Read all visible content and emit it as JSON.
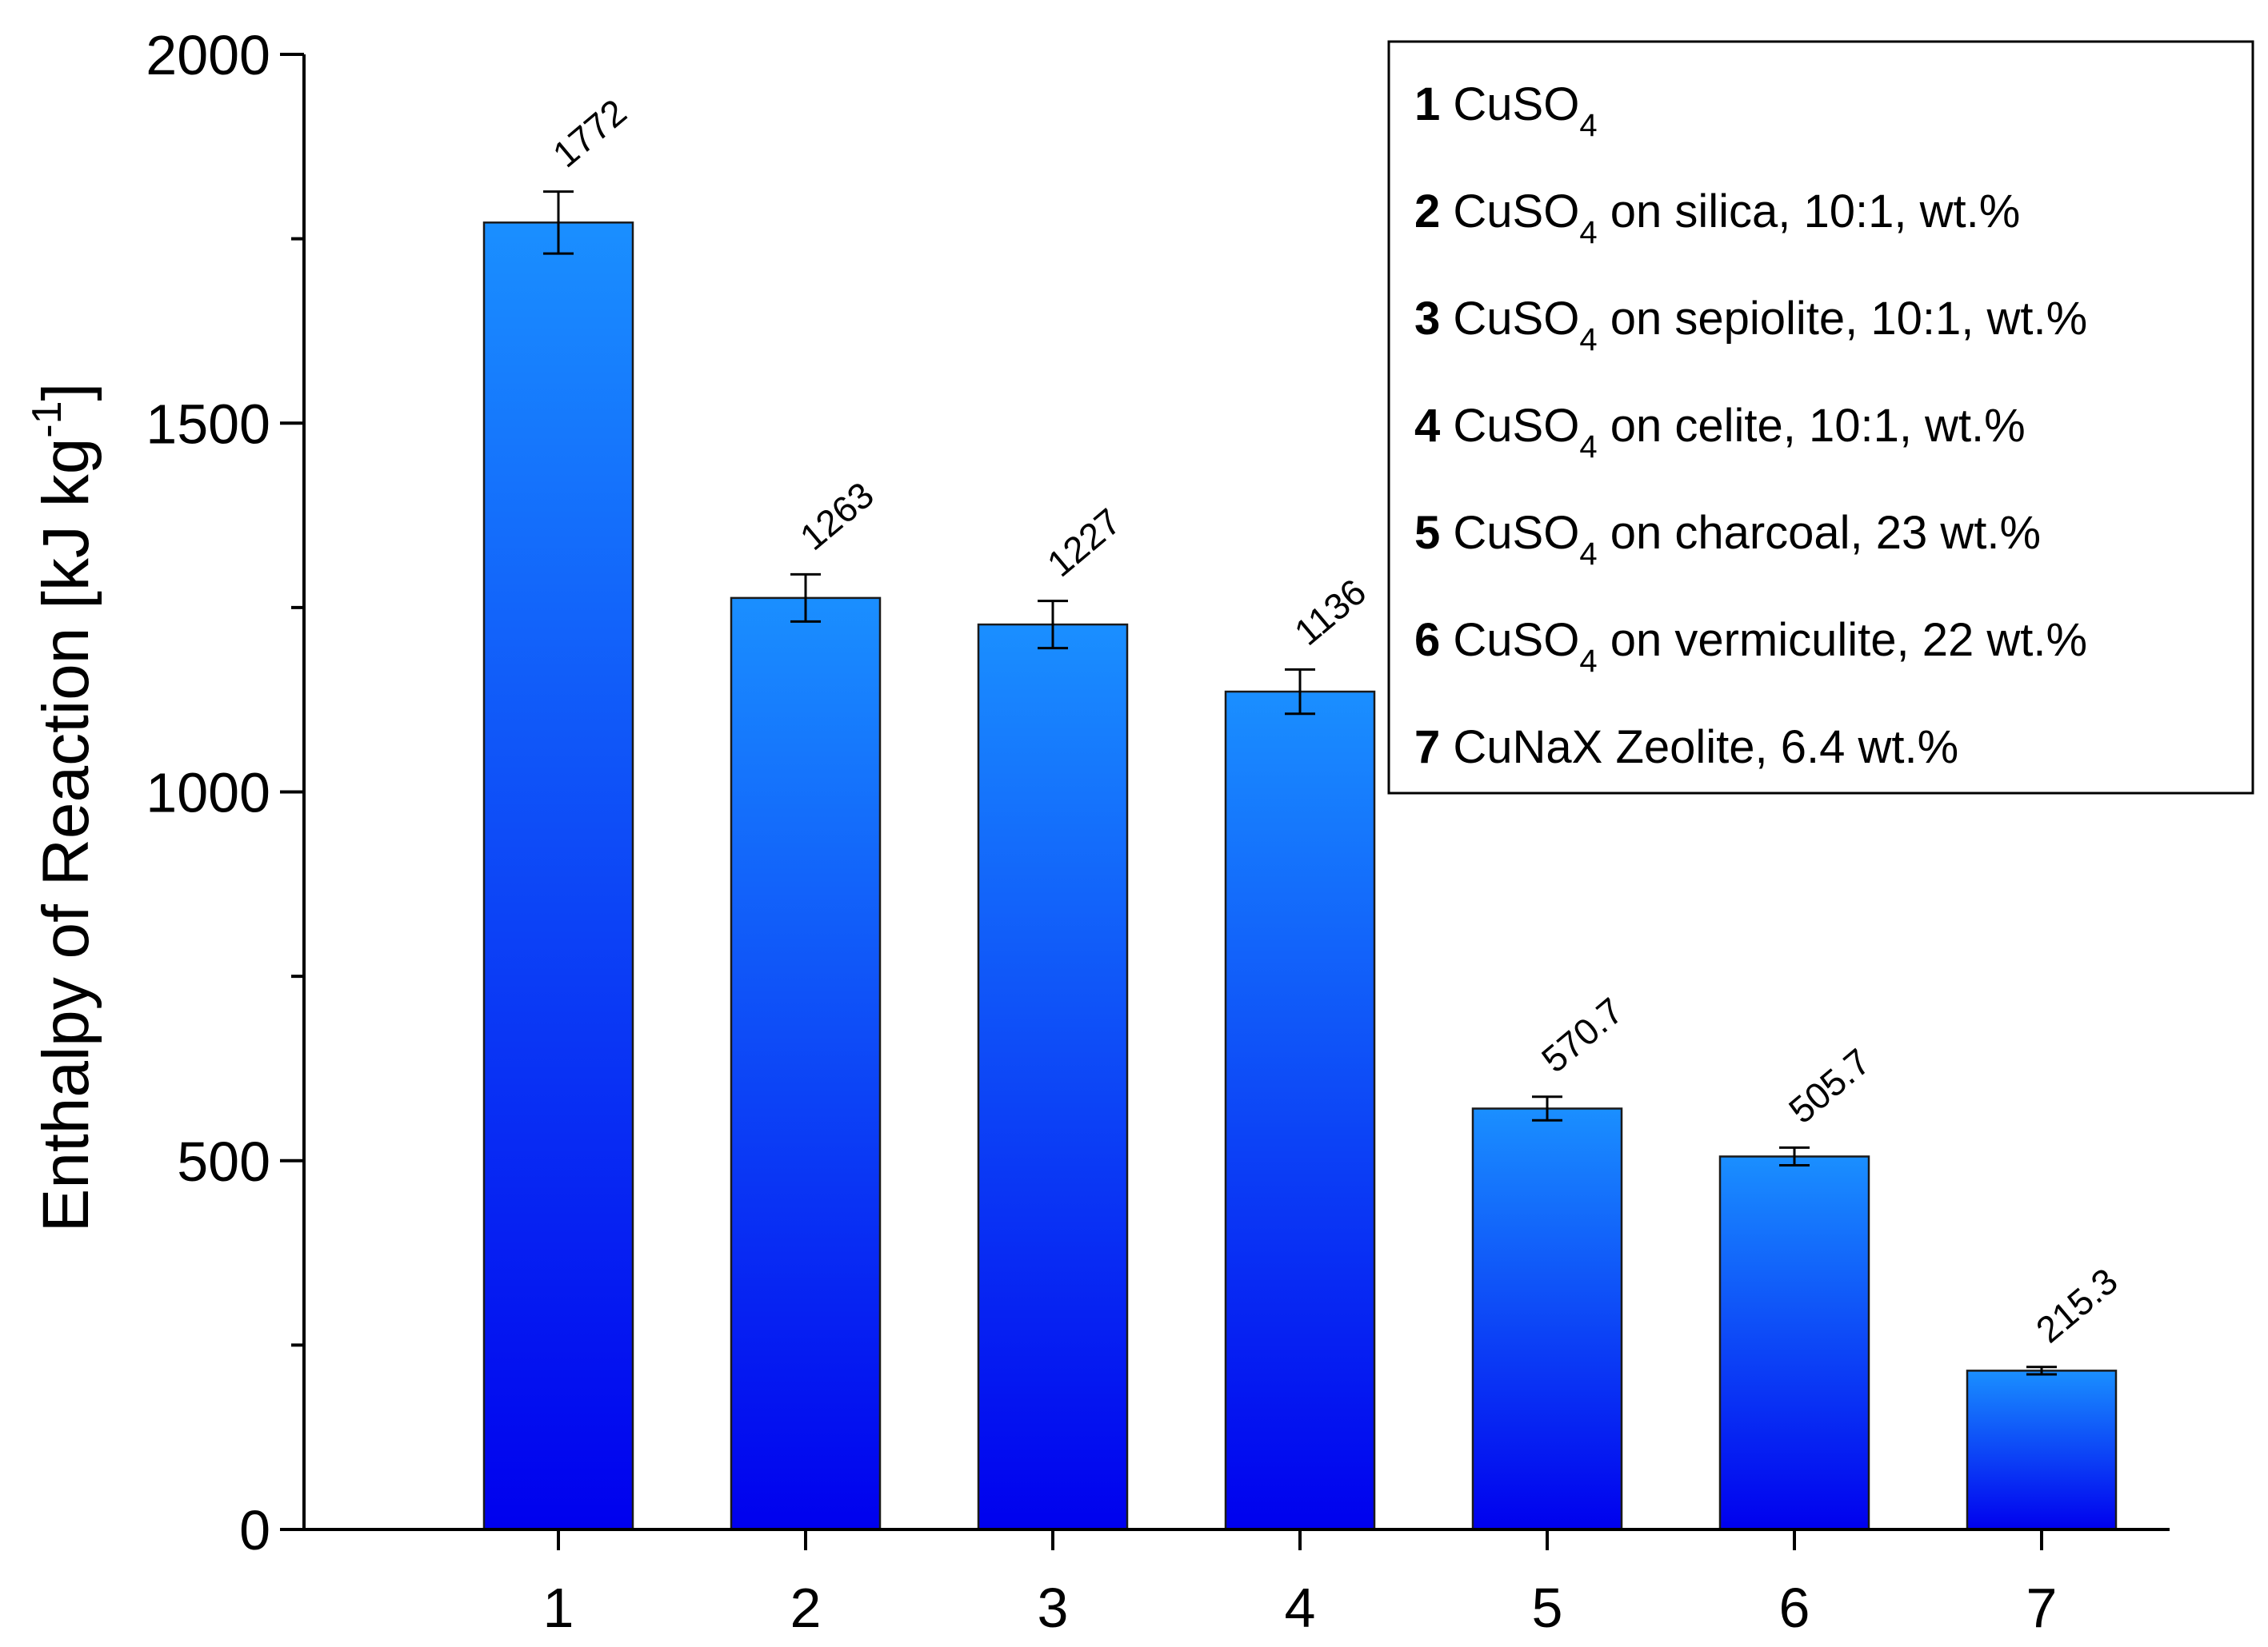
{
  "chart_data": {
    "type": "bar",
    "title": "",
    "xlabel": "",
    "ylabel": "Enthalpy of Reaction [kJ kg",
    "ylabel_superscript": "-1",
    "ylabel_suffix": "]",
    "ylim": [
      0,
      2000
    ],
    "yticks": [
      0,
      500,
      1000,
      1500,
      2000
    ],
    "ytick_labels": [
      "0",
      "500",
      "1000",
      "1500",
      "2000"
    ],
    "categories": [
      "1",
      "2",
      "3",
      "4",
      "5",
      "6",
      "7"
    ],
    "values": [
      1772,
      1263,
      1227,
      1136,
      570.7,
      505.7,
      215.3
    ],
    "value_labels": [
      "1772",
      "1263",
      "1227",
      "1136",
      "570.7",
      "505.7",
      "215.3"
    ],
    "errors": [
      42,
      32,
      32,
      30,
      16,
      12,
      5
    ],
    "bar_color_top": "#1a8fff",
    "bar_color_bottom": "#0000ee",
    "legend_position": "top-right",
    "legend": [
      {
        "num": "1",
        "text": "CuSO",
        "sub": "4",
        "rest": ""
      },
      {
        "num": "2",
        "text": "CuSO",
        "sub": "4",
        "rest": " on silica, 10:1, wt.%"
      },
      {
        "num": "3",
        "text": "CuSO",
        "sub": "4",
        "rest": " on sepiolite, 10:1, wt.%"
      },
      {
        "num": "4",
        "text": "CuSO",
        "sub": "4",
        "rest": " on celite, 10:1, wt.%"
      },
      {
        "num": "5",
        "text": "CuSO",
        "sub": "4",
        "rest": " on charcoal, 23 wt.%"
      },
      {
        "num": "6",
        "text": "CuSO",
        "sub": "4",
        "rest": " on vermiculite, 22 wt.%"
      },
      {
        "num": "7",
        "text": "CuNaX Zeolite, 6.4 wt.%",
        "sub": "",
        "rest": ""
      }
    ]
  }
}
